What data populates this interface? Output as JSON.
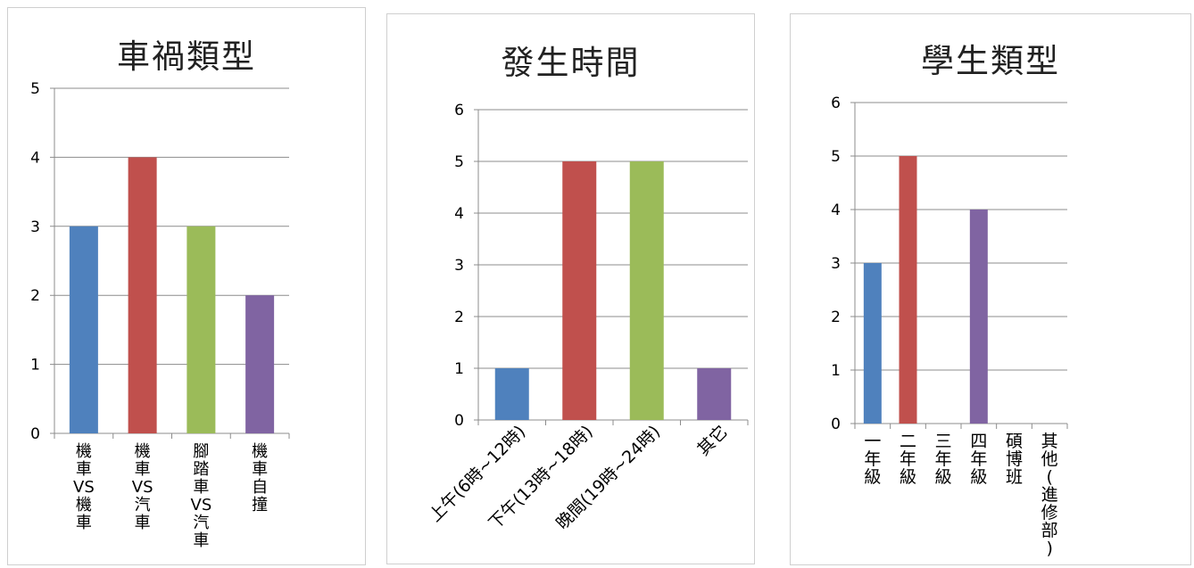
{
  "chart_data": [
    {
      "type": "bar",
      "title": "車禍類型",
      "categories": [
        "機車VS機車",
        "機車VS汽車",
        "腳踏車VS汽車",
        "機車自撞"
      ],
      "values": [
        3,
        4,
        3,
        2
      ],
      "ylim": [
        0,
        5
      ],
      "yticks": [
        0,
        1,
        2,
        3,
        4,
        5
      ],
      "grid": true,
      "colors": [
        "#4f81bd",
        "#c0504d",
        "#9bbb59",
        "#8064a2"
      ]
    },
    {
      "type": "bar",
      "title": "發生時間",
      "categories": [
        "上午(6時~12時)",
        "下午(13時~18時)",
        "晚間(19時~24時)",
        "其它"
      ],
      "values": [
        1,
        5,
        5,
        1
      ],
      "ylim": [
        0,
        6
      ],
      "yticks": [
        0,
        1,
        2,
        3,
        4,
        5,
        6
      ],
      "grid": true,
      "colors": [
        "#4f81bd",
        "#c0504d",
        "#9bbb59",
        "#8064a2"
      ]
    },
    {
      "type": "bar",
      "title": "學生類型",
      "categories": [
        "一年級",
        "二年級",
        "三年級",
        "四年級",
        "碩博班",
        "其他(進修部)"
      ],
      "values": [
        3,
        5,
        0,
        4,
        0,
        0
      ],
      "ylim": [
        0,
        6
      ],
      "yticks": [
        0,
        1,
        2,
        3,
        4,
        5,
        6
      ],
      "grid": true,
      "colors": [
        "#4f81bd",
        "#c0504d",
        "#9bbb59",
        "#8064a2",
        "#4bacc6",
        "#f79646"
      ]
    }
  ]
}
